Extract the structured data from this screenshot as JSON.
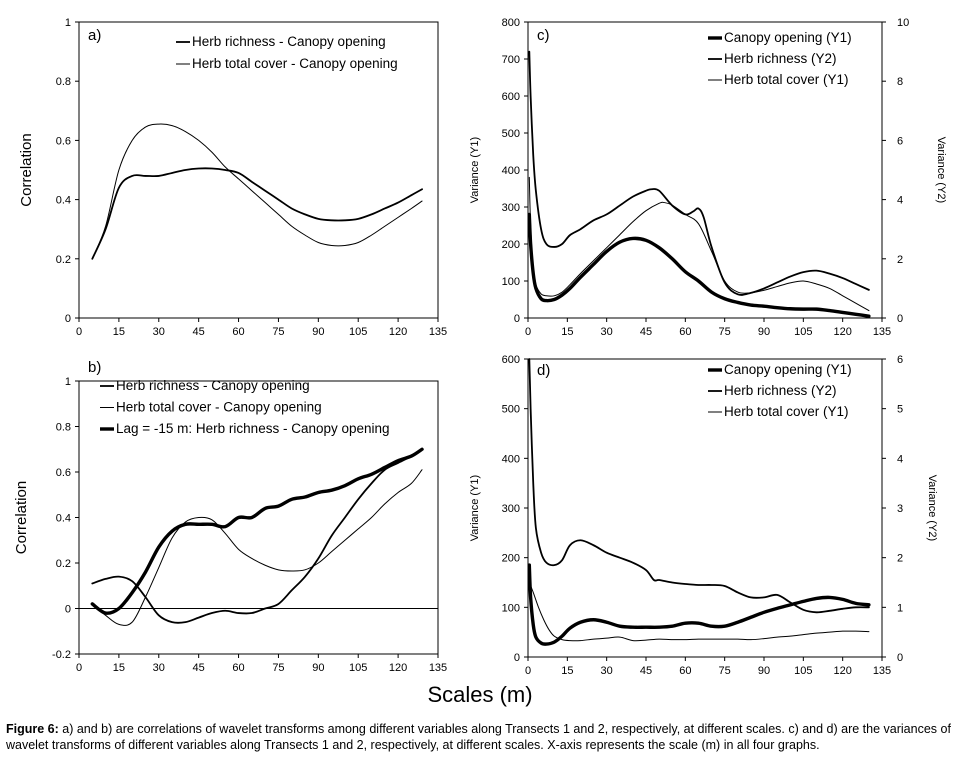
{
  "figure": {
    "xlabel_shared": "Scales (m)",
    "caption_label": "Figure 6:",
    "caption_text": " a) and b) are correlations of wavelet transforms among different variables along Transects 1 and 2, respectively, at different scales.  c) and d) are the variances of wavelet transforms of different variables along Transects 1 and 2, respectively, at different scales.  X-axis represents the scale (m) in all four graphs."
  },
  "chart_data": [
    {
      "id": "a",
      "type": "line",
      "panel_label": "a)",
      "ylabel": "Correlation",
      "xlim": [
        0,
        135
      ],
      "ylim": [
        0,
        1
      ],
      "xticks": [
        "0",
        "15",
        "30",
        "45",
        "60",
        "75",
        "90",
        "105",
        "120",
        "135"
      ],
      "yticks": [
        "0",
        "0.2",
        "0.4",
        "0.6",
        "0.8",
        "1"
      ],
      "series": [
        {
          "name": "Herb richness - Canopy opening",
          "weight": "medium",
          "x": [
            5,
            10,
            15,
            20,
            25,
            30,
            35,
            40,
            45,
            50,
            55,
            60,
            65,
            70,
            75,
            80,
            85,
            90,
            95,
            100,
            105,
            110,
            115,
            120,
            125,
            129
          ],
          "y": [
            0.2,
            0.3,
            0.44,
            0.48,
            0.48,
            0.48,
            0.49,
            0.5,
            0.505,
            0.505,
            0.5,
            0.49,
            0.46,
            0.43,
            0.4,
            0.37,
            0.35,
            0.335,
            0.33,
            0.33,
            0.335,
            0.35,
            0.37,
            0.39,
            0.415,
            0.435
          ]
        },
        {
          "name": "Herb total cover - Canopy opening",
          "weight": "thin",
          "x": [
            5,
            10,
            15,
            20,
            25,
            30,
            35,
            40,
            45,
            50,
            55,
            60,
            65,
            70,
            75,
            80,
            85,
            90,
            95,
            100,
            105,
            110,
            115,
            120,
            125,
            129
          ],
          "y": [
            0.2,
            0.31,
            0.5,
            0.6,
            0.645,
            0.655,
            0.65,
            0.63,
            0.6,
            0.56,
            0.51,
            0.47,
            0.43,
            0.39,
            0.35,
            0.31,
            0.28,
            0.255,
            0.245,
            0.245,
            0.255,
            0.28,
            0.31,
            0.34,
            0.37,
            0.395
          ]
        }
      ]
    },
    {
      "id": "b",
      "type": "line",
      "panel_label": "b)",
      "ylabel": "Correlation",
      "xlim": [
        0,
        135
      ],
      "ylim": [
        -0.2,
        1
      ],
      "xticks": [
        "0",
        "15",
        "30",
        "45",
        "60",
        "75",
        "90",
        "105",
        "120",
        "135"
      ],
      "yticks": [
        "-0.2",
        "0",
        "0.2",
        "0.4",
        "0.6",
        "0.8",
        "1"
      ],
      "zero_line": true,
      "series": [
        {
          "name": "Herb richness - Canopy opening",
          "weight": "medium",
          "x": [
            5,
            10,
            15,
            20,
            25,
            30,
            35,
            40,
            45,
            50,
            55,
            60,
            65,
            70,
            75,
            80,
            85,
            90,
            95,
            100,
            105,
            110,
            115,
            120,
            125,
            129
          ],
          "y": [
            0.11,
            0.13,
            0.14,
            0.12,
            0.05,
            -0.03,
            -0.06,
            -0.06,
            -0.04,
            -0.02,
            -0.01,
            -0.02,
            -0.02,
            0.0,
            0.02,
            0.08,
            0.14,
            0.22,
            0.32,
            0.4,
            0.48,
            0.55,
            0.61,
            0.64,
            0.67,
            0.7
          ]
        },
        {
          "name": "Herb total cover - Canopy opening",
          "weight": "thin",
          "x": [
            5,
            10,
            15,
            20,
            25,
            30,
            35,
            40,
            45,
            50,
            55,
            60,
            65,
            70,
            75,
            80,
            85,
            90,
            95,
            100,
            105,
            110,
            115,
            120,
            125,
            129
          ],
          "y": [
            0.02,
            -0.03,
            -0.07,
            -0.06,
            0.05,
            0.18,
            0.31,
            0.38,
            0.4,
            0.39,
            0.33,
            0.26,
            0.22,
            0.19,
            0.17,
            0.165,
            0.17,
            0.2,
            0.25,
            0.3,
            0.35,
            0.4,
            0.46,
            0.51,
            0.55,
            0.61
          ]
        },
        {
          "name": "Lag = -15 m: Herb richness - Canopy opening",
          "weight": "thick",
          "x": [
            5,
            10,
            15,
            20,
            25,
            30,
            35,
            40,
            45,
            50,
            55,
            60,
            65,
            70,
            75,
            80,
            85,
            90,
            95,
            100,
            105,
            110,
            115,
            120,
            125,
            129
          ],
          "y": [
            0.02,
            -0.02,
            0.0,
            0.07,
            0.16,
            0.27,
            0.34,
            0.37,
            0.37,
            0.37,
            0.36,
            0.4,
            0.4,
            0.44,
            0.45,
            0.48,
            0.49,
            0.51,
            0.52,
            0.54,
            0.57,
            0.59,
            0.62,
            0.65,
            0.67,
            0.7
          ]
        }
      ]
    },
    {
      "id": "c",
      "type": "line",
      "panel_label": "c)",
      "ylabel": "Variance (Y1)",
      "y2label": "Variance (Y2)",
      "xlim": [
        0,
        135
      ],
      "ylim": [
        0,
        800
      ],
      "y2lim": [
        0,
        10
      ],
      "xticks": [
        "0",
        "15",
        "30",
        "45",
        "60",
        "75",
        "90",
        "105",
        "120",
        "135"
      ],
      "yticks": [
        "0",
        "100",
        "200",
        "300",
        "400",
        "500",
        "600",
        "700",
        "800"
      ],
      "y2ticks": [
        "0",
        "2",
        "4",
        "6",
        "8",
        "10"
      ],
      "series": [
        {
          "name": "Canopy opening (Y1)",
          "weight": "thick",
          "axis": "y1",
          "x": [
            0.5,
            1,
            2,
            3,
            5,
            7,
            10,
            13,
            16,
            20,
            25,
            30,
            35,
            40,
            45,
            50,
            55,
            60,
            65,
            70,
            75,
            80,
            85,
            90,
            95,
            100,
            105,
            110,
            115,
            120,
            125,
            130
          ],
          "y": [
            280,
            200,
            120,
            80,
            52,
            47,
            50,
            62,
            80,
            110,
            145,
            180,
            205,
            215,
            210,
            190,
            160,
            125,
            100,
            70,
            52,
            42,
            35,
            32,
            28,
            25,
            24,
            24,
            20,
            15,
            10,
            5
          ]
        },
        {
          "name": "Herb richness (Y2)",
          "weight": "medium",
          "axis": "y2",
          "x": [
            0.5,
            1,
            2,
            3,
            5,
            7,
            10,
            13,
            16,
            20,
            25,
            30,
            35,
            40,
            45,
            47,
            50,
            55,
            60,
            63,
            65,
            67,
            70,
            75,
            80,
            85,
            90,
            95,
            100,
            105,
            110,
            115,
            120,
            125,
            130
          ],
          "y": [
            9.0,
            7.5,
            5.5,
            4.3,
            3.0,
            2.5,
            2.4,
            2.5,
            2.8,
            3.0,
            3.3,
            3.5,
            3.8,
            4.1,
            4.3,
            4.35,
            4.3,
            3.8,
            3.5,
            3.6,
            3.7,
            3.4,
            2.4,
            1.2,
            0.8,
            0.85,
            1.0,
            1.2,
            1.4,
            1.55,
            1.6,
            1.5,
            1.35,
            1.15,
            0.95
          ]
        },
        {
          "name": "Herb total cover (Y1)",
          "weight": "thin",
          "axis": "y1",
          "x": [
            0.5,
            1,
            2,
            3,
            5,
            7,
            10,
            13,
            16,
            20,
            25,
            30,
            35,
            40,
            45,
            50,
            52,
            55,
            60,
            65,
            70,
            75,
            80,
            85,
            90,
            95,
            100,
            105,
            110,
            115,
            120,
            125,
            130
          ],
          "y": [
            380,
            250,
            130,
            90,
            65,
            60,
            60,
            70,
            90,
            120,
            155,
            190,
            225,
            260,
            290,
            310,
            312,
            305,
            280,
            255,
            180,
            100,
            70,
            68,
            75,
            85,
            95,
            100,
            92,
            80,
            60,
            40,
            20
          ]
        }
      ]
    },
    {
      "id": "d",
      "type": "line",
      "panel_label": "d)",
      "ylabel": "Variance (Y1)",
      "y2label": "Variance (Y2)",
      "xlim": [
        0,
        135
      ],
      "ylim": [
        0,
        600
      ],
      "y2lim": [
        0,
        6
      ],
      "xticks": [
        "0",
        "15",
        "30",
        "45",
        "60",
        "75",
        "90",
        "105",
        "120",
        "135"
      ],
      "yticks": [
        "0",
        "100",
        "200",
        "300",
        "400",
        "500",
        "600"
      ],
      "y2ticks": [
        "0",
        "1",
        "2",
        "3",
        "4",
        "5",
        "6"
      ],
      "series": [
        {
          "name": "Canopy opening (Y1)",
          "weight": "thick",
          "axis": "y1",
          "x": [
            0.5,
            1,
            2,
            3,
            5,
            7,
            10,
            13,
            16,
            20,
            25,
            30,
            35,
            40,
            45,
            50,
            55,
            60,
            65,
            70,
            75,
            80,
            85,
            90,
            95,
            100,
            105,
            110,
            115,
            120,
            125,
            130
          ],
          "y": [
            185,
            120,
            65,
            40,
            28,
            26,
            30,
            42,
            58,
            70,
            75,
            70,
            62,
            60,
            60,
            60,
            62,
            68,
            68,
            62,
            62,
            70,
            80,
            90,
            98,
            105,
            112,
            118,
            120,
            116,
            108,
            105
          ]
        },
        {
          "name": "Herb richness (Y2)",
          "weight": "medium",
          "axis": "y2",
          "x": [
            0.5,
            1,
            2,
            3,
            5,
            7,
            10,
            13,
            16,
            20,
            25,
            30,
            35,
            40,
            45,
            48,
            50,
            55,
            60,
            65,
            70,
            75,
            80,
            85,
            90,
            95,
            100,
            105,
            110,
            115,
            120,
            125,
            130
          ],
          "y": [
            6.0,
            5.0,
            3.5,
            2.6,
            2.1,
            1.9,
            1.85,
            1.95,
            2.25,
            2.35,
            2.25,
            2.1,
            2.0,
            1.9,
            1.75,
            1.55,
            1.55,
            1.5,
            1.47,
            1.45,
            1.45,
            1.43,
            1.3,
            1.2,
            1.2,
            1.25,
            1.1,
            0.95,
            0.9,
            0.93,
            0.97,
            1.0,
            1.0
          ]
        },
        {
          "name": "Herb total cover (Y1)",
          "weight": "thin",
          "axis": "y1",
          "x": [
            0.5,
            2,
            4,
            6,
            8,
            10,
            13,
            16,
            20,
            25,
            30,
            35,
            40,
            45,
            50,
            55,
            60,
            65,
            70,
            75,
            80,
            85,
            90,
            95,
            100,
            105,
            110,
            115,
            120,
            125,
            130
          ],
          "y": [
            150,
            130,
            100,
            75,
            55,
            42,
            35,
            33,
            33,
            36,
            38,
            40,
            33,
            34,
            36,
            35,
            35,
            36,
            36,
            36,
            36,
            35,
            37,
            40,
            42,
            45,
            48,
            50,
            52,
            52,
            51
          ]
        }
      ]
    }
  ]
}
